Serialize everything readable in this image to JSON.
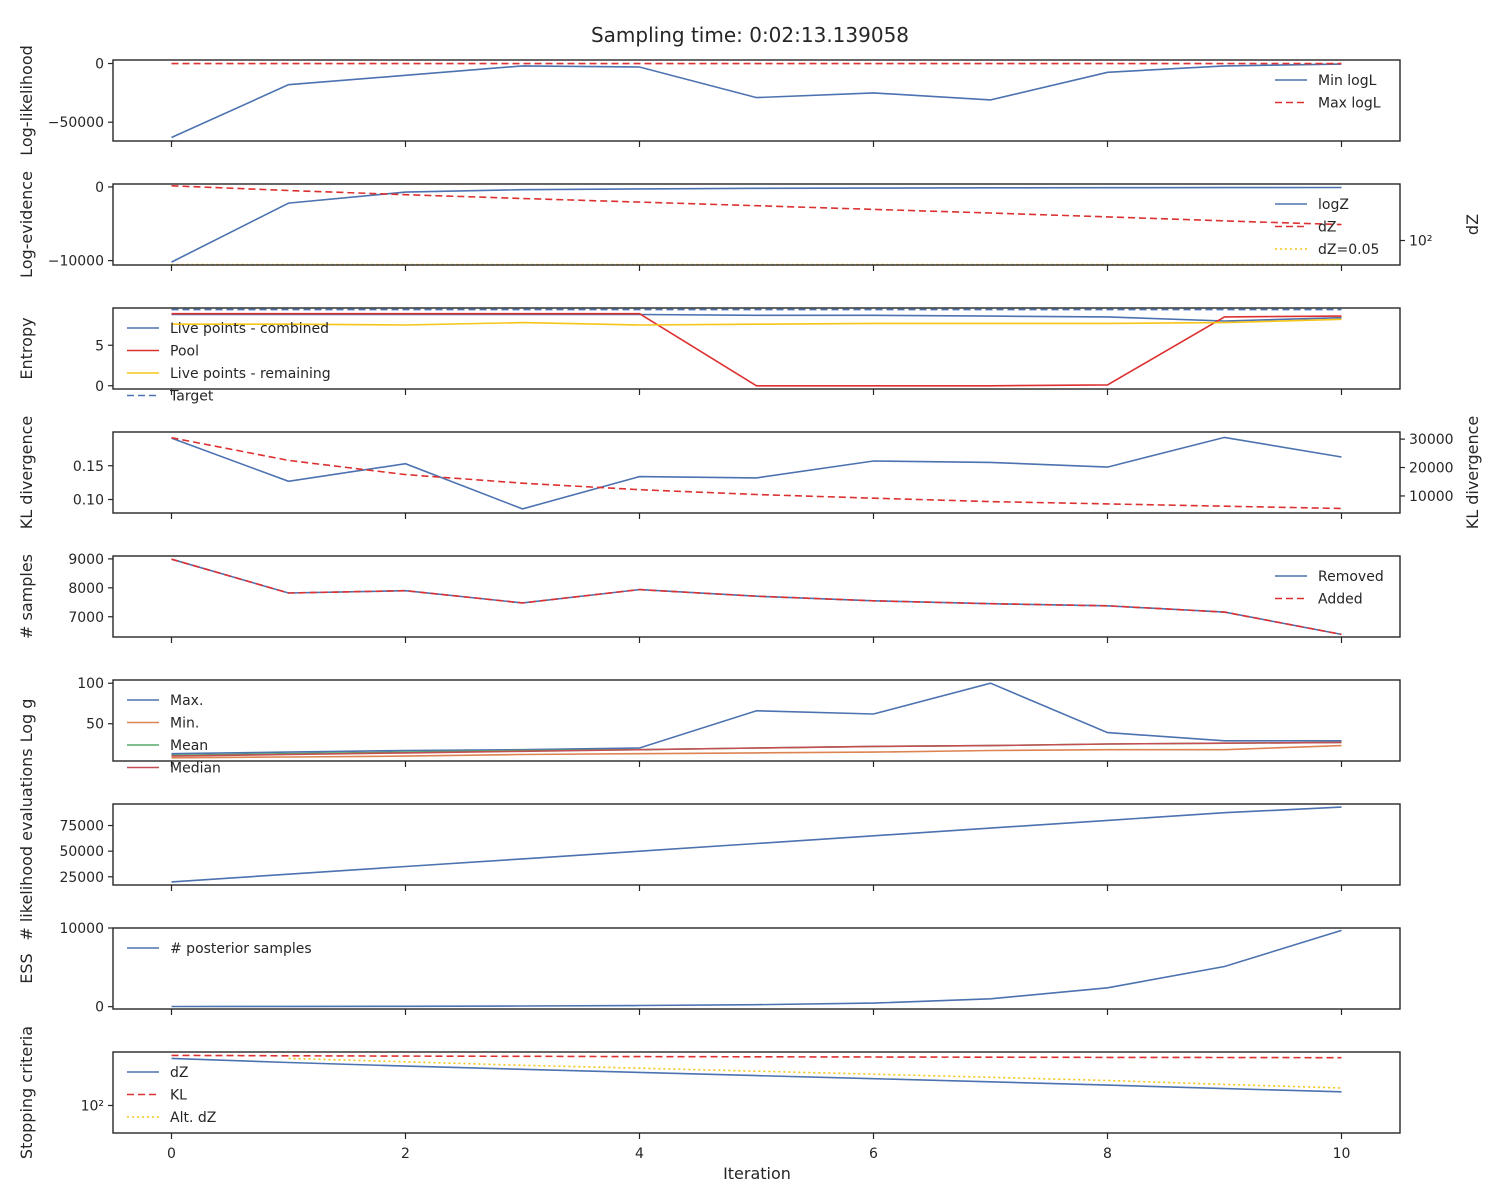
{
  "title": "Sampling time: 0:02:13.139058",
  "xlabel": "Iteration",
  "x_ticks": [
    0,
    2,
    4,
    6,
    8,
    10
  ],
  "chart_data": [
    {
      "id": "loglikelihood",
      "type": "line",
      "ylabel": "Log-likelihood",
      "ylim": [
        -66000,
        3000
      ],
      "yticks": [
        {
          "v": 0,
          "label": "0"
        },
        {
          "v": -50000,
          "label": "−50000"
        }
      ],
      "legend": "top-right",
      "x": [
        0,
        1,
        2,
        3,
        4,
        5,
        6,
        7,
        8,
        9,
        10
      ],
      "series": [
        {
          "name": "Min logL",
          "color": "#4c72b0",
          "dash": "solid",
          "values": [
            -63000,
            -18000,
            -10000,
            -2000,
            -3000,
            -29000,
            -25000,
            -31000,
            -7500,
            -2000,
            -500
          ]
        },
        {
          "name": "Max logL",
          "color": "#dd3131",
          "dash": "dashed",
          "values": [
            -30,
            -30,
            -30,
            -30,
            -30,
            -30,
            -30,
            -30,
            -30,
            -30,
            -30
          ]
        }
      ]
    },
    {
      "id": "logevidence",
      "type": "line",
      "ylabel": "Log-evidence",
      "ylabel_right": "dZ",
      "ylim": [
        -10600,
        400
      ],
      "yticks": [
        {
          "v": 0,
          "label": "0"
        },
        {
          "v": -10000,
          "label": "−10000"
        }
      ],
      "right_scale": "log",
      "right_ylim": [
        5,
        100000
      ],
      "right_yticks": [
        {
          "v": 100,
          "label": "10²"
        }
      ],
      "legend": "top-right",
      "x": [
        0,
        1,
        2,
        3,
        4,
        5,
        6,
        7,
        8,
        9,
        10
      ],
      "series": [
        {
          "name": "logZ",
          "axis": "left",
          "color": "#4c72b0",
          "dash": "solid",
          "values": [
            -10200,
            -2200,
            -700,
            -380,
            -260,
            -190,
            -150,
            -120,
            -100,
            -85,
            -70
          ]
        },
        {
          "name": "dZ",
          "axis": "right",
          "color": "#dd3131",
          "dash": "dashed",
          "values": [
            80000,
            45000,
            27000,
            17000,
            11000,
            7000,
            4500,
            2900,
            1800,
            1100,
            700
          ]
        },
        {
          "name": "dZ=0.05",
          "axis": "right",
          "color": "#f5c518",
          "dash": "dotted",
          "values": [
            5.3,
            5.3,
            5.3,
            5.3,
            5.3,
            5.3,
            5.3,
            5.3,
            5.3,
            5.3,
            5.3
          ]
        }
      ]
    },
    {
      "id": "entropy",
      "type": "line",
      "ylabel": "Entropy",
      "ylim": [
        -0.4,
        9.6
      ],
      "yticks": [
        {
          "v": 0,
          "label": "0"
        },
        {
          "v": 5,
          "label": "5"
        }
      ],
      "legend": "top-left",
      "x": [
        0,
        1,
        2,
        3,
        4,
        5,
        6,
        7,
        8,
        9,
        10
      ],
      "series": [
        {
          "name": "Live points - combined",
          "color": "#4c72b0",
          "dash": "solid",
          "values": [
            8.8,
            8.8,
            8.8,
            8.8,
            8.8,
            8.7,
            8.7,
            8.6,
            8.5,
            8.0,
            8.4
          ]
        },
        {
          "name": "Pool",
          "color": "#dd3131",
          "dash": "solid",
          "values": [
            8.9,
            8.9,
            8.9,
            8.9,
            8.9,
            0.0,
            0.0,
            0.0,
            0.1,
            8.5,
            8.6
          ]
        },
        {
          "name": "Live points - remaining",
          "color": "#f5c518",
          "dash": "solid",
          "values": [
            7.6,
            7.6,
            7.5,
            7.8,
            7.5,
            7.6,
            7.7,
            7.7,
            7.7,
            7.8,
            8.2
          ]
        },
        {
          "name": "Target",
          "color": "#4c72b0",
          "dash": "dashed",
          "values": [
            9.4,
            9.4,
            9.4,
            9.4,
            9.4,
            9.4,
            9.4,
            9.4,
            9.4,
            9.4,
            9.4
          ]
        }
      ]
    },
    {
      "id": "kl",
      "type": "line",
      "ylabel": "KL divergence",
      "ylabel_right": "KL divergence",
      "ylim": [
        0.08,
        0.2
      ],
      "yticks": [
        {
          "v": 0.1,
          "label": "0.10"
        },
        {
          "v": 0.15,
          "label": "0.15"
        }
      ],
      "right_scale": "linear",
      "right_ylim": [
        4000,
        32500
      ],
      "right_yticks": [
        {
          "v": 10000,
          "label": "10000"
        },
        {
          "v": 20000,
          "label": "20000"
        },
        {
          "v": 30000,
          "label": "30000"
        }
      ],
      "x": [
        0,
        1,
        2,
        3,
        4,
        5,
        6,
        7,
        8,
        9,
        10
      ],
      "series": [
        {
          "axis": "left",
          "color": "#4c72b0",
          "dash": "solid",
          "values": [
            0.191,
            0.127,
            0.153,
            0.086,
            0.134,
            0.132,
            0.157,
            0.155,
            0.148,
            0.192,
            0.163
          ]
        },
        {
          "axis": "right",
          "color": "#dd3131",
          "dash": "dashed",
          "values": [
            30500,
            22500,
            17500,
            14500,
            12200,
            10500,
            9200,
            8000,
            7200,
            6400,
            5600
          ]
        }
      ]
    },
    {
      "id": "samples",
      "type": "line",
      "ylabel": "# samples",
      "ylim": [
        6300,
        9100
      ],
      "yticks": [
        {
          "v": 7000,
          "label": "7000"
        },
        {
          "v": 8000,
          "label": "8000"
        },
        {
          "v": 9000,
          "label": "9000"
        }
      ],
      "legend": "top-right",
      "x": [
        0,
        1,
        2,
        3,
        4,
        5,
        6,
        7,
        8,
        9,
        10
      ],
      "series": [
        {
          "name": "Removed",
          "color": "#4c72b0",
          "dash": "solid",
          "values": [
            8990,
            7820,
            7900,
            7480,
            7940,
            7710,
            7550,
            7450,
            7380,
            7160,
            6390
          ]
        },
        {
          "name": "Added",
          "color": "#dd3131",
          "dash": "dashed",
          "values": [
            8990,
            7820,
            7900,
            7480,
            7940,
            7710,
            7550,
            7450,
            7380,
            7160,
            6390
          ]
        }
      ]
    },
    {
      "id": "logg",
      "type": "line",
      "ylabel": "Log g",
      "ylim": [
        4,
        104
      ],
      "yticks": [
        {
          "v": 50,
          "label": "50"
        },
        {
          "v": 100,
          "label": "100"
        }
      ],
      "legend": "top-left",
      "x": [
        0,
        1,
        2,
        3,
        4,
        5,
        6,
        7,
        8,
        9,
        10
      ],
      "series": [
        {
          "name": "Max.",
          "color": "#4c72b0",
          "dash": "solid",
          "values": [
            13,
            15,
            17,
            18,
            20,
            66,
            62,
            100,
            39,
            29,
            29
          ]
        },
        {
          "name": "Min.",
          "color": "#dd8452",
          "dash": "solid",
          "values": [
            8,
            9,
            10,
            12,
            13,
            14,
            15,
            17,
            18,
            18,
            23
          ]
        },
        {
          "name": "Mean",
          "color": "#55a868",
          "dash": "solid",
          "values": [
            11,
            13,
            15,
            17,
            18,
            20,
            22,
            23,
            25,
            26,
            27
          ]
        },
        {
          "name": "Median",
          "color": "#c44e52",
          "dash": "solid",
          "values": [
            10,
            12,
            14,
            16,
            18,
            20,
            22,
            23,
            25,
            26,
            27
          ]
        }
      ]
    },
    {
      "id": "evals",
      "type": "line",
      "ylabel": "# likelihood evaluations",
      "ylim": [
        17000,
        96000
      ],
      "yticks": [
        {
          "v": 25000,
          "label": "25000"
        },
        {
          "v": 50000,
          "label": "50000"
        },
        {
          "v": 75000,
          "label": "75000"
        }
      ],
      "x": [
        0,
        1,
        2,
        3,
        4,
        5,
        6,
        7,
        8,
        9,
        10
      ],
      "series": [
        {
          "color": "#4c72b0",
          "dash": "solid",
          "values": [
            20000,
            27500,
            35000,
            42500,
            50000,
            57500,
            65000,
            72500,
            80000,
            87500,
            93000
          ]
        }
      ]
    },
    {
      "id": "ess",
      "type": "line",
      "ylabel": "ESS",
      "ylim": [
        -300,
        10000
      ],
      "yticks": [
        {
          "v": 0,
          "label": "0"
        },
        {
          "v": 10000,
          "label": "10000"
        }
      ],
      "legend": "top-left",
      "x": [
        0,
        1,
        2,
        3,
        4,
        5,
        6,
        7,
        8,
        9,
        10
      ],
      "series": [
        {
          "name": "# posterior samples",
          "color": "#4c72b0",
          "dash": "solid",
          "values": [
            20,
            30,
            40,
            80,
            140,
            250,
            450,
            1000,
            2400,
            5100,
            9700
          ]
        }
      ]
    },
    {
      "id": "stopping",
      "type": "line",
      "ylabel": "Stopping criteria",
      "scale": "log",
      "ylim": [
        2,
        200000
      ],
      "yticks": [
        {
          "v": 100,
          "label": "10²"
        }
      ],
      "legend": "top-left",
      "x": [
        0,
        1,
        2,
        3,
        4,
        5,
        6,
        7,
        8,
        9,
        10
      ],
      "series": [
        {
          "name": "dZ",
          "color": "#4c72b0",
          "dash": "solid",
          "x": [
            0,
            1,
            2,
            3,
            4,
            5,
            6,
            7,
            8,
            9,
            10
          ],
          "values": [
            80000,
            45000,
            27000,
            17000,
            11000,
            7000,
            4500,
            2900,
            1800,
            1100,
            700
          ]
        },
        {
          "name": "KL",
          "color": "#dd3131",
          "dash": "dashed",
          "x": [
            0,
            1,
            2,
            3,
            4,
            5,
            6,
            7,
            8,
            9,
            10
          ],
          "values": [
            123000,
            117000,
            112000,
            108000,
            104000,
            101000,
            98000,
            95500,
            93000,
            91000,
            89000
          ]
        },
        {
          "name": "Alt. dZ",
          "color": "#f5c518",
          "dash": "dotted",
          "x": [
            1,
            2,
            3,
            4,
            5,
            6,
            7,
            8,
            9,
            10
          ],
          "values": [
            80000,
            50000,
            30000,
            20000,
            13000,
            8500,
            5500,
            3500,
            2000,
            1200
          ]
        }
      ]
    }
  ]
}
